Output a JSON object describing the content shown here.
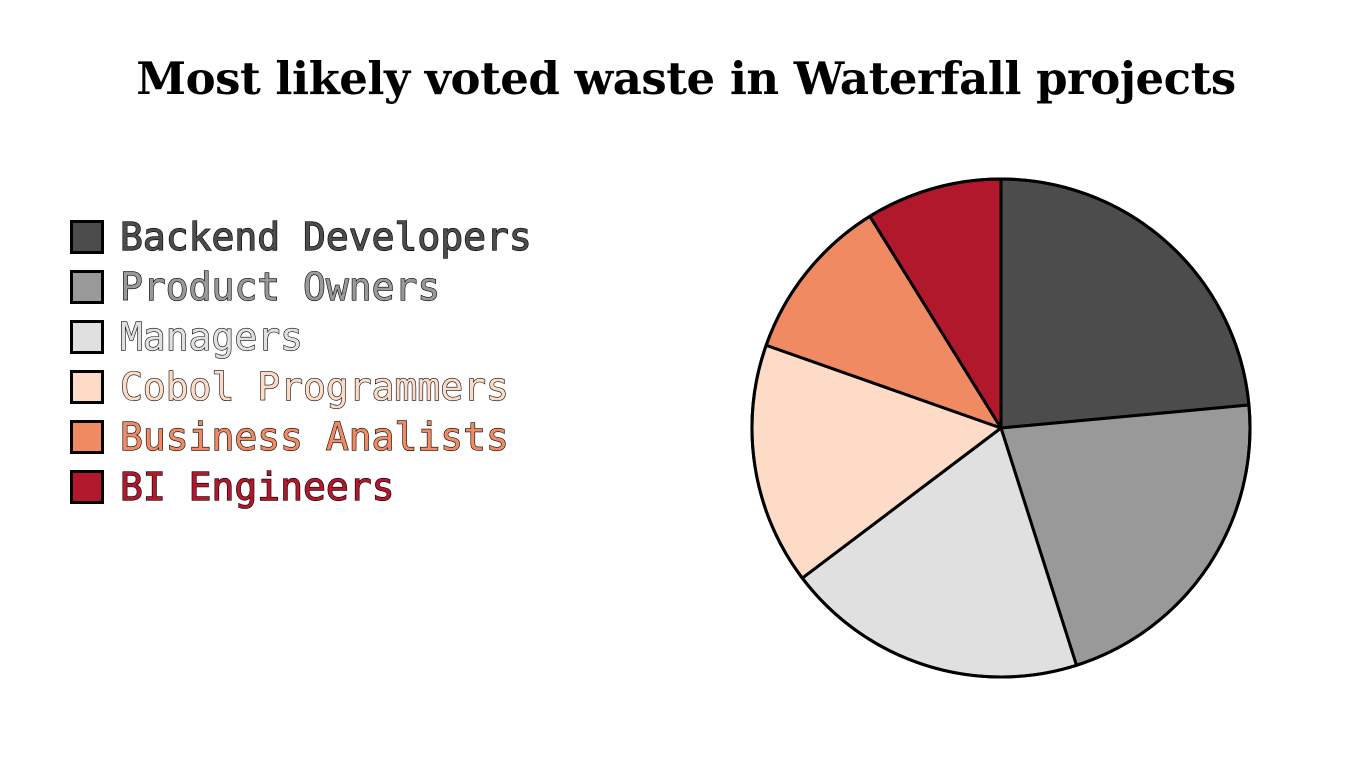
{
  "chart_data": {
    "type": "pie",
    "title": "Most likely voted waste in Waterfall projects",
    "start_angle": "top",
    "direction": "clockwise",
    "legend_position": "left",
    "slices": [
      {
        "label": "Backend Developers",
        "value": 24,
        "color": "#4c4c4c"
      },
      {
        "label": "Product Owners",
        "value": 22,
        "color": "#999999"
      },
      {
        "label": "Managers",
        "value": 20,
        "color": "#e0e0e0"
      },
      {
        "label": "Cobol Programmers",
        "value": 16,
        "color": "#fddbc7"
      },
      {
        "label": "Business Analists",
        "value": 11,
        "color": "#ef8a62"
      },
      {
        "label": "BI Engineers",
        "value": 9,
        "color": "#b2182b"
      }
    ]
  }
}
